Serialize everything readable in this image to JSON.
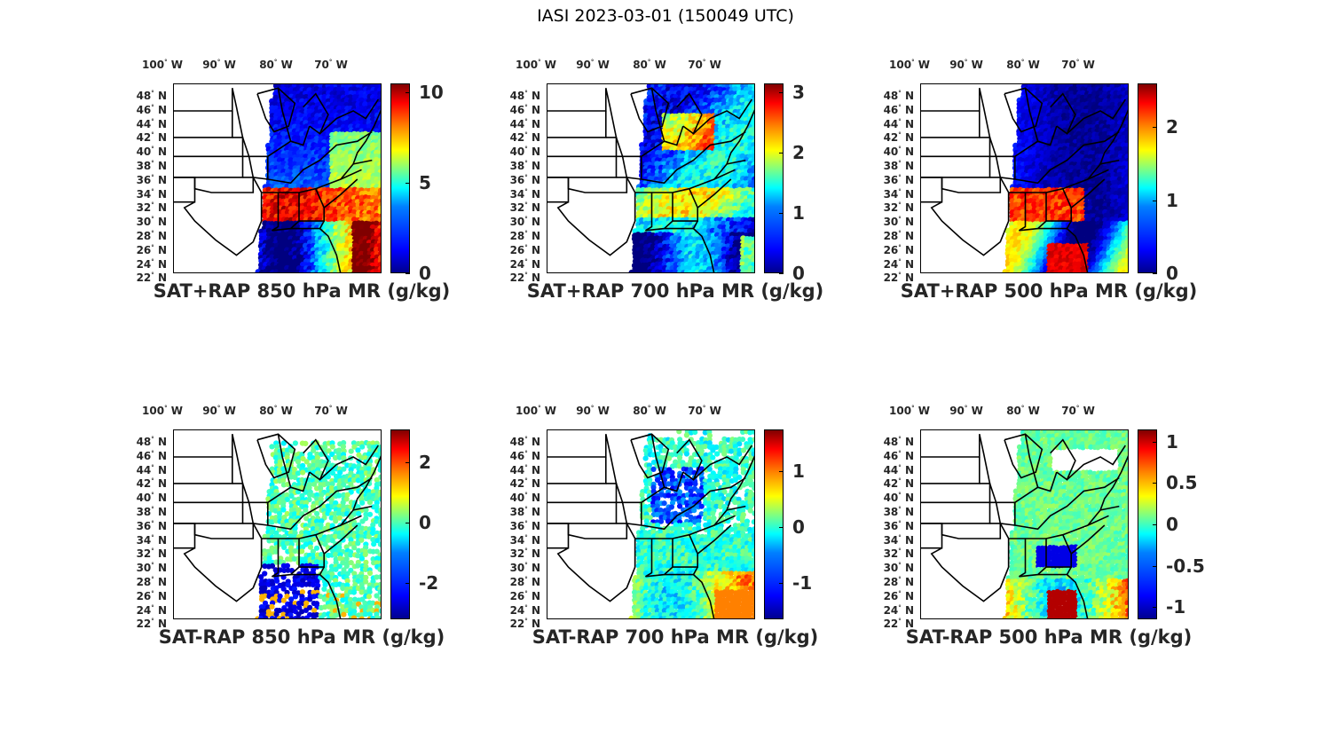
{
  "figure_title": "IASI 2023-03-01 (150049 UTC)",
  "lon_labels": [
    "100",
    "90",
    "80",
    "70"
  ],
  "lon_suffix": "W",
  "lat_labels": [
    "48",
    "46",
    "44",
    "42",
    "40",
    "38",
    "36",
    "34",
    "32",
    "30",
    "28",
    "26",
    "24",
    "22"
  ],
  "lat_suffix": "N",
  "degree_symbol": "°",
  "colormap": "jet",
  "panels": [
    {
      "title": "SAT+RAP 850 hPa MR (g/kg)",
      "cbar_range": [
        0,
        10.5
      ],
      "cbar_ticks": [
        "10",
        "5",
        "0"
      ],
      "cbar_tick_values": [
        10,
        5,
        0
      ],
      "pattern": "sum850"
    },
    {
      "title": "SAT+RAP 700 hPa MR (g/kg)",
      "cbar_range": [
        0,
        3.15
      ],
      "cbar_ticks": [
        "3",
        "2",
        "1",
        "0"
      ],
      "cbar_tick_values": [
        3,
        2,
        1,
        0
      ],
      "pattern": "sum700"
    },
    {
      "title": "SAT+RAP 500 hPa MR (g/kg)",
      "cbar_range": [
        0,
        2.6
      ],
      "cbar_ticks": [
        "2",
        "1",
        "0"
      ],
      "cbar_tick_values": [
        2,
        1,
        0
      ],
      "pattern": "sum500"
    },
    {
      "title": "SAT-RAP 850 hPa MR (g/kg)",
      "cbar_range": [
        -3.2,
        3.1
      ],
      "cbar_ticks": [
        "2",
        "0",
        "-2"
      ],
      "cbar_tick_values": [
        2,
        0,
        -2
      ],
      "pattern": "diff850"
    },
    {
      "title": "SAT-RAP 700 hPa MR (g/kg)",
      "cbar_range": [
        -1.65,
        1.75
      ],
      "cbar_ticks": [
        "1",
        "0",
        "-1"
      ],
      "cbar_tick_values": [
        1,
        0,
        -1
      ],
      "pattern": "diff700"
    },
    {
      "title": "SAT-RAP 500 hPa MR (g/kg)",
      "cbar_range": [
        -1.15,
        1.15
      ],
      "cbar_ticks": [
        "1",
        "0.5",
        "0",
        "-0.5",
        "-1"
      ],
      "cbar_tick_values": [
        1,
        0.5,
        0,
        -0.5,
        -1
      ],
      "pattern": "diff500"
    }
  ]
}
